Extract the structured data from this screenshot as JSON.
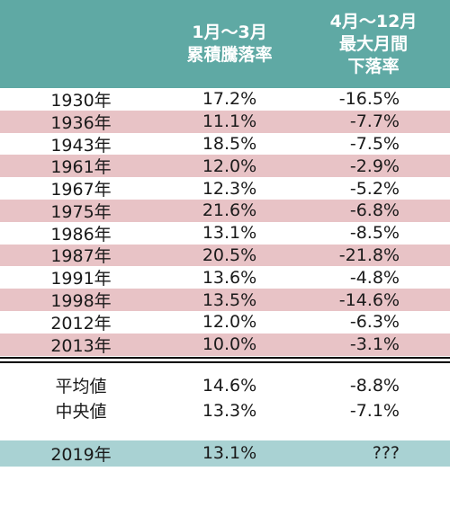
{
  "header": {
    "col2_line1": "1月～3月",
    "col2_line2": "累積騰落率",
    "col3_line1": "4月～12月",
    "col3_line2": "最大月間",
    "col3_line3": "下落率"
  },
  "rows": [
    {
      "year": "1930年",
      "q1": "17.2%",
      "max_drop": "-16.5%"
    },
    {
      "year": "1936年",
      "q1": "11.1%",
      "max_drop": "-7.7%"
    },
    {
      "year": "1943年",
      "q1": "18.5%",
      "max_drop": "-7.5%"
    },
    {
      "year": "1961年",
      "q1": "12.0%",
      "max_drop": "-2.9%"
    },
    {
      "year": "1967年",
      "q1": "12.3%",
      "max_drop": "-5.2%"
    },
    {
      "year": "1975年",
      "q1": "21.6%",
      "max_drop": "-6.8%"
    },
    {
      "year": "1986年",
      "q1": "13.1%",
      "max_drop": "-8.5%"
    },
    {
      "year": "1987年",
      "q1": "20.5%",
      "max_drop": "-21.8%"
    },
    {
      "year": "1991年",
      "q1": "13.6%",
      "max_drop": "-4.8%"
    },
    {
      "year": "1998年",
      "q1": "13.5%",
      "max_drop": "-14.6%"
    },
    {
      "year": "2012年",
      "q1": "12.0%",
      "max_drop": "-6.3%"
    },
    {
      "year": "2013年",
      "q1": "10.0%",
      "max_drop": "-3.1%"
    }
  ],
  "stats": [
    {
      "label": "平均値",
      "q1": "14.6%",
      "max_drop": "-8.8%"
    },
    {
      "label": "中央値",
      "q1": "13.3%",
      "max_drop": "-7.1%"
    }
  ],
  "current": {
    "year": "2019年",
    "q1": "13.1%",
    "max_drop": "???"
  },
  "colors": {
    "header": "#5fa9a4",
    "alt_row": "#e8c3c6",
    "current_row": "#a9d2d3"
  }
}
